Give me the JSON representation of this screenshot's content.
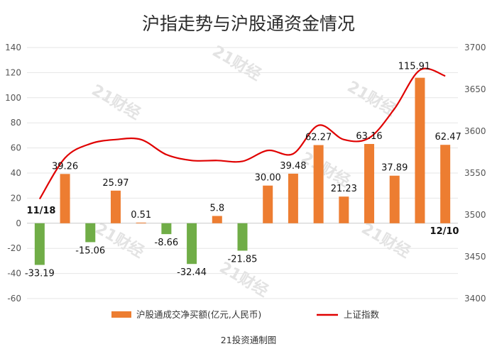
{
  "chart_data": {
    "type": "bar+line",
    "title": "沪指走势与沪股通资金情况",
    "footer": "21投资通制图",
    "watermark": "21财经",
    "colors": {
      "bar_positive": "#ED7D31",
      "bar_negative": "#70AD47",
      "line": "#E00000"
    },
    "left_axis": {
      "min": -60,
      "max": 140,
      "step": 20,
      "ticks": [
        "140",
        "120",
        "100",
        "80",
        "60",
        "40",
        "20",
        "0",
        "-20",
        "-40",
        "-60"
      ]
    },
    "right_axis": {
      "min": 3400,
      "max": 3700,
      "step": 50,
      "ticks": [
        "3700",
        "3650",
        "3600",
        "3550",
        "3500",
        "3450",
        "3400"
      ]
    },
    "x_labels": {
      "start": "11/18",
      "end": "12/10"
    },
    "series": [
      {
        "name": "沪股通成交净买额(亿元,人民币)",
        "type": "bar",
        "axis": "left",
        "values": [
          -33.19,
          39.26,
          -15.06,
          25.97,
          0.51,
          -8.66,
          -32.44,
          5.8,
          -21.85,
          30.0,
          39.48,
          62.27,
          21.23,
          63.16,
          37.89,
          115.91,
          62.47
        ],
        "labels": [
          "-33.19",
          "39.26",
          "-15.06",
          "25.97",
          "0.51",
          "-8.66",
          "-32.44",
          "5.8",
          "-21.85",
          "30.00",
          "39.48",
          "62.27",
          "21.23",
          "63.16",
          "37.89",
          "115.91",
          "62.47"
        ]
      },
      {
        "name": "上证指数",
        "type": "line",
        "axis": "right",
        "values": [
          3519,
          3568,
          3585,
          3590,
          3590,
          3572,
          3565,
          3565,
          3564,
          3577,
          3573,
          3607,
          3590,
          3592,
          3627,
          3673,
          3666
        ]
      }
    ],
    "legend": {
      "position": "bottom"
    },
    "grid": "horizontal"
  }
}
